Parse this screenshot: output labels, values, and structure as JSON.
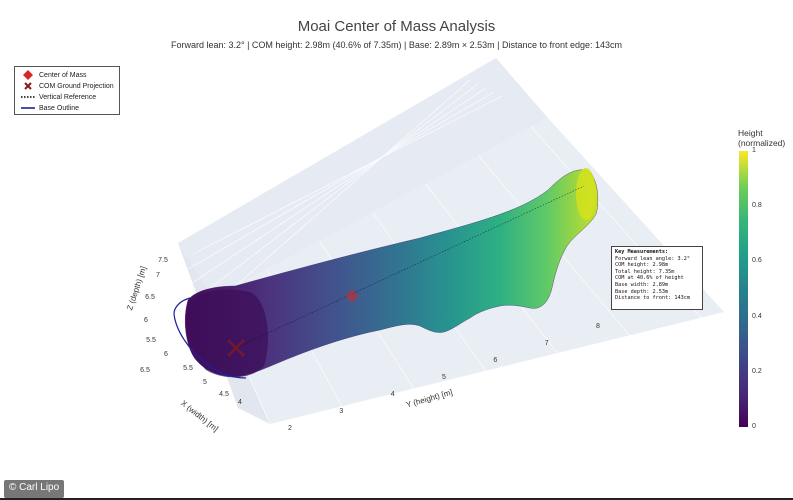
{
  "chart_data": {
    "type": "scatter",
    "title": "Moai Center of Mass Analysis",
    "subtitle": "Forward lean: 3.2° | COM height: 2.98m (40.6% of 7.35m) | Base: 2.89m × 2.53m | Distance to front edge: 143cm",
    "xlabel": "X (width) [m]",
    "ylabel": "Y (height) [m]",
    "zlabel": "Z (depth) [m]",
    "x_ticks": [
      "4",
      "4.5",
      "5",
      "5.5",
      "6",
      "6.5"
    ],
    "y_ticks": [
      "2",
      "3",
      "4",
      "5",
      "6",
      "7",
      "8"
    ],
    "z_ticks": [
      "5.5",
      "6",
      "6.5",
      "7",
      "7.5"
    ],
    "legend": {
      "placement": "top-left",
      "entries": [
        {
          "name": "Center of Mass",
          "marker": "diamond",
          "color": "#d62728"
        },
        {
          "name": "COM Ground Projection",
          "marker": "x",
          "color": "#8b1a1a"
        },
        {
          "name": "Vertical Reference",
          "marker": "dotted-line",
          "color": "#000000"
        },
        {
          "name": "Base Outline",
          "marker": "line",
          "color": "#1f1f9a"
        }
      ]
    },
    "colorbar": {
      "title_lines": [
        "Height",
        "(normalized)"
      ],
      "ticks": [
        "0",
        "0.2",
        "0.4",
        "0.6",
        "0.8",
        "1"
      ],
      "colorscale": "viridis"
    },
    "annotation_lines": [
      "Key Measurements:",
      "Forward lean angle: 3.2°",
      "COM height: 2.98m",
      "Total height: 7.35m",
      "COM at 40.6% of height",
      "Base width: 2.89m",
      "Base depth: 2.53m",
      "Distance to front: 143cm"
    ]
  },
  "credit": "© Carl Lipo"
}
